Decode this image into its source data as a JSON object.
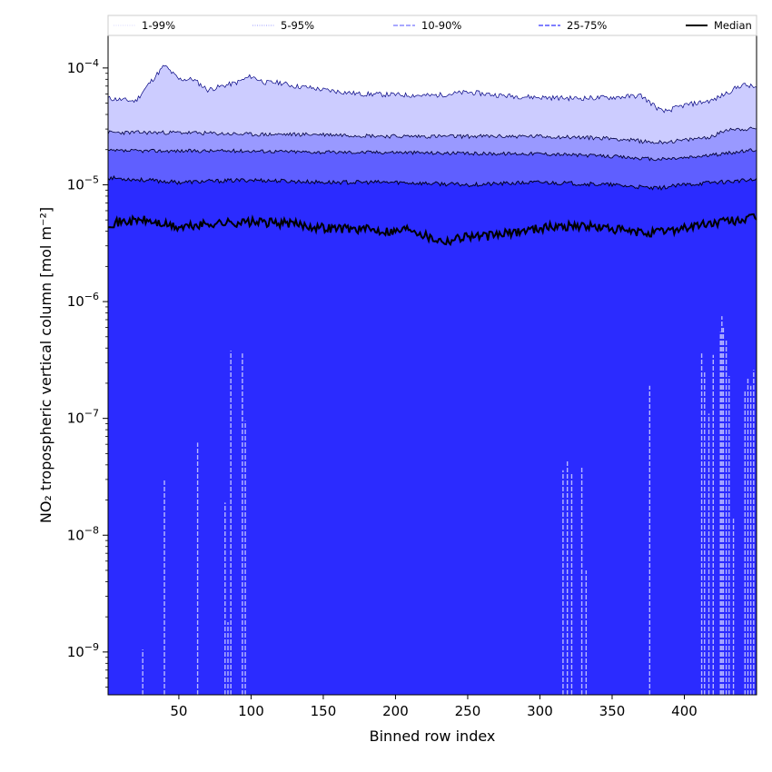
{
  "chart_data": {
    "type": "area",
    "x_label": "Binned row index",
    "y_label": "NO₂ tropospheric vertical column [mol m⁻²]",
    "y_scale": "log",
    "xlim": [
      1,
      450
    ],
    "ylim": [
      4.3e-10,
      0.00019
    ],
    "x_ticks": [
      50,
      100,
      150,
      200,
      250,
      300,
      350,
      400
    ],
    "x_tick_labels": [
      "50",
      "100",
      "150",
      "200",
      "250",
      "300",
      "350",
      "400"
    ],
    "y_ticks": [
      1e-09,
      1e-08,
      1e-07,
      1e-06,
      1e-05,
      0.0001
    ],
    "y_tick_base": "10",
    "y_tick_exponents": [
      "−9",
      "−8",
      "−7",
      "−6",
      "−5",
      "−4"
    ],
    "legend": {
      "position": "top",
      "entries": [
        {
          "label": "1-99%",
          "color": "#d8d8ff",
          "style": "dotted"
        },
        {
          "label": "5-95%",
          "color": "#9999ff",
          "style": "dotted"
        },
        {
          "label": "10-90%",
          "color": "#8c8cff",
          "style": "dashed"
        },
        {
          "label": "25-75%",
          "color": "#5555ff",
          "style": "dashed"
        },
        {
          "label": "Median",
          "color": "#000000",
          "style": "solid"
        }
      ]
    },
    "band_colors": {
      "p1_99": "#2b2bff",
      "p5_95": "#ccccff",
      "p10_90": "#9999ff",
      "p25_75": "#5f5fff",
      "below": "#2b2bff"
    },
    "series": [
      {
        "name": "99th percentile",
        "x": [
          1,
          20,
          30,
          40,
          50,
          60,
          70,
          80,
          90,
          100,
          110,
          120,
          130,
          140,
          150,
          175,
          200,
          225,
          250,
          275,
          300,
          325,
          350,
          370,
          385,
          400,
          420,
          440,
          450
        ],
        "values": [
          5.5e-05,
          5.2e-05,
          7.5e-05,
          0.000105,
          8e-05,
          8e-05,
          6.5e-05,
          7e-05,
          7.5e-05,
          8.5e-05,
          7.5e-05,
          7.5e-05,
          7e-05,
          6.8e-05,
          6.5e-05,
          6e-05,
          5.9e-05,
          5.8e-05,
          6.2e-05,
          5.8e-05,
          5.6e-05,
          5.5e-05,
          5.6e-05,
          5.8e-05,
          4.2e-05,
          4.8e-05,
          5.3e-05,
          7.2e-05,
          6.8e-05
        ]
      },
      {
        "name": "95th percentile",
        "x": [
          1,
          50,
          100,
          150,
          200,
          250,
          300,
          350,
          380,
          400,
          420,
          430,
          450
        ],
        "values": [
          2.8e-05,
          2.8e-05,
          2.7e-05,
          2.7e-05,
          2.6e-05,
          2.6e-05,
          2.6e-05,
          2.5e-05,
          2.3e-05,
          2.4e-05,
          2.6e-05,
          3e-05,
          3e-05
        ]
      },
      {
        "name": "90th percentile",
        "x": [
          1,
          50,
          100,
          150,
          200,
          250,
          300,
          350,
          380,
          400,
          420,
          450
        ],
        "values": [
          1.95e-05,
          1.95e-05,
          1.95e-05,
          1.9e-05,
          1.9e-05,
          1.85e-05,
          1.85e-05,
          1.75e-05,
          1.65e-05,
          1.7e-05,
          1.8e-05,
          2e-05
        ]
      },
      {
        "name": "75th percentile",
        "x": [
          1,
          50,
          100,
          150,
          200,
          250,
          300,
          350,
          380,
          400,
          420,
          450
        ],
        "values": [
          1.15e-05,
          1.05e-05,
          1.1e-05,
          1.05e-05,
          1.05e-05,
          1e-05,
          1.05e-05,
          1e-05,
          9.3e-06,
          1e-05,
          1.05e-05,
          1.1e-05
        ]
      },
      {
        "name": "Median",
        "x": [
          1,
          25,
          50,
          75,
          100,
          125,
          150,
          175,
          200,
          210,
          225,
          235,
          250,
          260,
          275,
          300,
          325,
          350,
          365,
          380,
          400,
          425,
          450
        ],
        "values": [
          4.7e-06,
          5e-06,
          4.3e-06,
          4.7e-06,
          4.8e-06,
          4.7e-06,
          4.3e-06,
          4.2e-06,
          4e-06,
          4.3e-06,
          3.5e-06,
          3.3e-06,
          3.7e-06,
          3.6e-06,
          3.8e-06,
          4.3e-06,
          4.5e-06,
          4.2e-06,
          3.9e-06,
          3.9e-06,
          4.3e-06,
          4.8e-06,
          5.2e-06
        ]
      }
    ],
    "low_percentile_dips": [
      {
        "x": 25,
        "value": 1.05e-09
      },
      {
        "x": 40,
        "value": 3e-08
      },
      {
        "x": 63,
        "value": 6.2e-08
      },
      {
        "x": 82,
        "value": 1.9e-08
      },
      {
        "x": 84,
        "value": 1.8e-09
      },
      {
        "x": 86,
        "value": 3.8e-07
      },
      {
        "x": 94,
        "value": 3.6e-07
      },
      {
        "x": 96,
        "value": 9.5e-08
      },
      {
        "x": 316,
        "value": 3.6e-08
      },
      {
        "x": 319,
        "value": 4.3e-08
      },
      {
        "x": 322,
        "value": 3.4e-08
      },
      {
        "x": 329,
        "value": 3.9e-08
      },
      {
        "x": 332,
        "value": 5e-09
      },
      {
        "x": 376,
        "value": 1.9e-07
      },
      {
        "x": 412,
        "value": 3.6e-07
      },
      {
        "x": 414,
        "value": 2.5e-07
      },
      {
        "x": 417,
        "value": 1.1e-07
      },
      {
        "x": 420,
        "value": 3.5e-07
      },
      {
        "x": 425,
        "value": 5.5e-07
      },
      {
        "x": 426,
        "value": 7.5e-07
      },
      {
        "x": 427,
        "value": 6e-07
      },
      {
        "x": 429,
        "value": 4.8e-07
      },
      {
        "x": 431,
        "value": 2.3e-07
      },
      {
        "x": 434,
        "value": 1.4e-08
      },
      {
        "x": 442,
        "value": 1.7e-07
      },
      {
        "x": 444,
        "value": 2.2e-07
      },
      {
        "x": 446,
        "value": 1.9e-07
      },
      {
        "x": 448,
        "value": 2.6e-07
      }
    ]
  }
}
